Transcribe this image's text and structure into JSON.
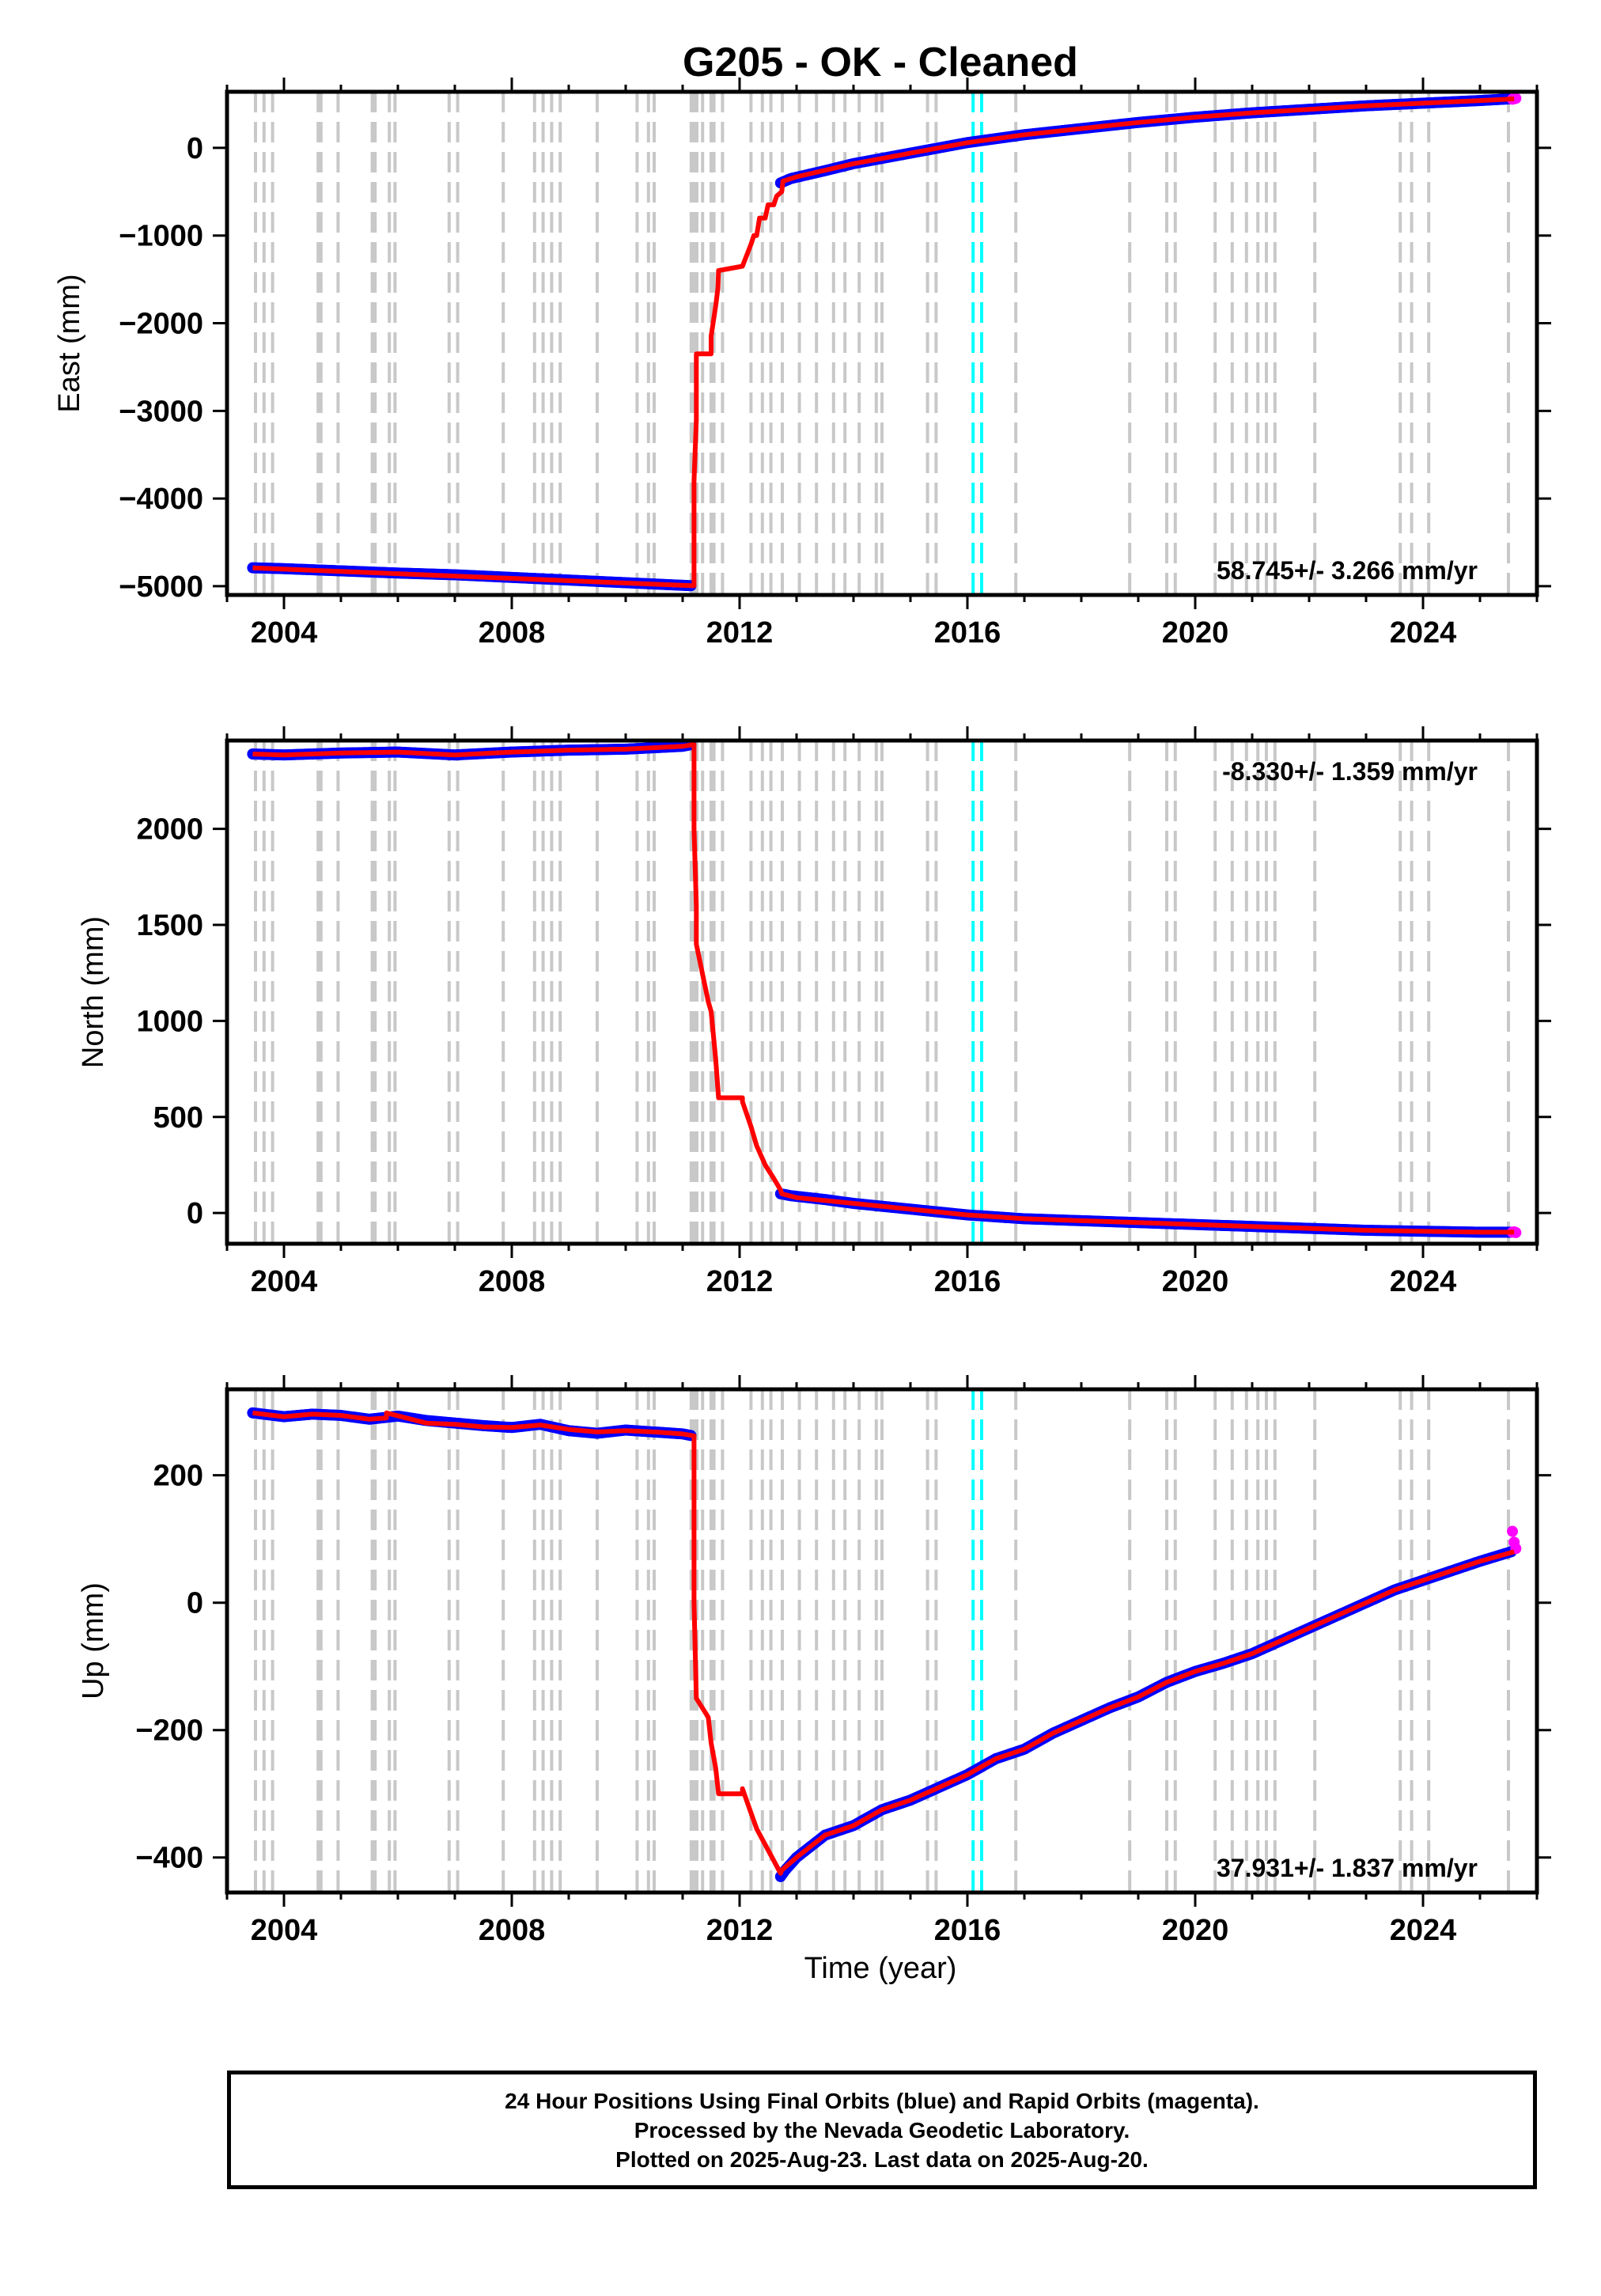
{
  "title": "G205  - OK - Cleaned",
  "xlabel": "Time (year)",
  "colors": {
    "final_orbits": "#0000ff",
    "rapid_orbits": "#ff00ff",
    "model": "#ff0000",
    "offset_lines": "#c8c8c8",
    "offset_lines_highlight": "#00ffff"
  },
  "footer": {
    "line1": "24 Hour Positions Using Final Orbits (blue) and Rapid Orbits (magenta).",
    "line2": "Processed by the Nevada Geodetic Laboratory.",
    "line3": "Plotted on 2025-Aug-23. Last data on 2025-Aug-20."
  },
  "chart_data": [
    {
      "type": "scatter",
      "panel": "east",
      "ylabel": "East (mm)",
      "rate_label": "58.745+/- 3.266 mm/yr",
      "rate_position": "bottom-right",
      "xlim": [
        2003.0,
        2026.0
      ],
      "ylim": [
        -5100,
        640
      ],
      "x_ticks": [
        2004,
        2008,
        2012,
        2016,
        2020,
        2024
      ],
      "y_ticks": [
        0,
        -1000,
        -2000,
        -3000,
        -4000,
        -5000
      ],
      "y_tick_labels": [
        "0",
        "−1000",
        "−2000",
        "−3000",
        "−4000",
        "−5000"
      ],
      "grid": false,
      "series": [
        {
          "name": "Final Orbits",
          "color": "blue",
          "style": "points",
          "x": [
            2003.45,
            2004.0,
            2005.0,
            2006.0,
            2007.0,
            2008.0,
            2009.0,
            2010.0,
            2011.0,
            2011.17,
            2012.72,
            2012.9,
            2013.5,
            2014.0,
            2015.0,
            2016.0,
            2017.0,
            2018.0,
            2019.0,
            2020.0,
            2021.0,
            2022.0,
            2023.0,
            2024.0,
            2025.0,
            2025.55
          ],
          "y": [
            -4790,
            -4800,
            -4825,
            -4850,
            -4870,
            -4900,
            -4930,
            -4960,
            -4990,
            -4995,
            -400,
            -350,
            -260,
            -180,
            -60,
            60,
            150,
            220,
            290,
            350,
            400,
            440,
            480,
            510,
            540,
            560
          ]
        },
        {
          "name": "Rapid Orbits",
          "color": "magenta",
          "style": "points",
          "x": [
            2025.57,
            2025.6,
            2025.63
          ],
          "y": [
            555,
            560,
            565
          ]
        },
        {
          "name": "Model",
          "color": "red",
          "style": "line",
          "x": [
            2003.45,
            2011.2,
            2011.2,
            2011.24,
            2011.24,
            2011.5,
            2011.5,
            2011.58,
            2011.62,
            2011.63,
            2012.05,
            2012.05,
            2012.2,
            2012.25,
            2012.3,
            2012.35,
            2012.45,
            2012.5,
            2012.6,
            2012.65,
            2012.74,
            2012.76,
            2013.0,
            2014.0,
            2015.0,
            2016.0,
            2017.0,
            2018.0,
            2019.0,
            2020.0,
            2021.0,
            2022.0,
            2023.0,
            2024.0,
            2025.0,
            2025.6
          ],
          "y": [
            -4790,
            -4995,
            -3800,
            -3100,
            -2350,
            -2350,
            -2150,
            -1800,
            -1600,
            -1400,
            -1350,
            -1350,
            -1100,
            -1000,
            -1000,
            -800,
            -800,
            -650,
            -650,
            -550,
            -500,
            -380,
            -330,
            -180,
            -60,
            60,
            150,
            220,
            290,
            350,
            400,
            440,
            480,
            510,
            540,
            560
          ]
        }
      ],
      "offset_lines_x": [
        2003.5,
        2003.65,
        2003.8,
        2004.6,
        2004.65,
        2004.95,
        2005.55,
        2005.6,
        2005.85,
        2005.95,
        2006.9,
        2007.05,
        2007.85,
        2008.4,
        2008.55,
        2008.7,
        2008.85,
        2009.5,
        2010.2,
        2010.4,
        2010.5,
        2011.15,
        2011.2,
        2011.25,
        2011.35,
        2011.5,
        2011.55,
        2011.7,
        2012.2,
        2012.4,
        2012.55,
        2012.75,
        2013.05,
        2013.35,
        2013.65,
        2013.85,
        2014.1,
        2014.4,
        2014.5,
        2015.3,
        2015.45,
        2016.85,
        2018.85,
        2019.5,
        2019.65,
        2020.35,
        2020.65,
        2020.9,
        2021.1,
        2021.25,
        2021.4,
        2022.1,
        2023.6,
        2023.8,
        2024.1,
        2025.5
      ],
      "highlight_lines_x": [
        2016.1,
        2016.25
      ]
    },
    {
      "type": "scatter",
      "panel": "north",
      "ylabel": "North (mm)",
      "rate_label": "-8.330+/- 1.359 mm/yr",
      "rate_position": "top-right",
      "xlim": [
        2003.0,
        2026.0
      ],
      "ylim": [
        -160,
        2460
      ],
      "x_ticks": [
        2004,
        2008,
        2012,
        2016,
        2020,
        2024
      ],
      "y_ticks": [
        2000,
        1500,
        1000,
        500,
        0
      ],
      "y_tick_labels": [
        "2000",
        "1500",
        "1000",
        "500",
        "0"
      ],
      "grid": false,
      "series": [
        {
          "name": "Final Orbits",
          "color": "blue",
          "style": "points",
          "x": [
            2003.45,
            2004.0,
            2005.0,
            2006.0,
            2007.0,
            2008.0,
            2009.0,
            2010.0,
            2011.0,
            2011.17,
            2012.72,
            2012.9,
            2013.5,
            2014.0,
            2015.0,
            2016.0,
            2017.0,
            2018.0,
            2019.0,
            2020.0,
            2021.0,
            2022.0,
            2023.0,
            2024.0,
            2025.0,
            2025.55
          ],
          "y": [
            2390,
            2385,
            2395,
            2400,
            2385,
            2400,
            2410,
            2415,
            2430,
            2440,
            100,
            90,
            70,
            50,
            20,
            -10,
            -30,
            -40,
            -50,
            -60,
            -70,
            -80,
            -90,
            -95,
            -100,
            -100
          ]
        },
        {
          "name": "Rapid Orbits",
          "color": "magenta",
          "style": "points",
          "x": [
            2025.57,
            2025.6,
            2025.63
          ],
          "y": [
            -100,
            -98,
            -102
          ]
        },
        {
          "name": "Model",
          "color": "red",
          "style": "line",
          "x": [
            2003.45,
            2004.0,
            2005.0,
            2006.0,
            2007.0,
            2008.0,
            2009.0,
            2010.0,
            2011.0,
            2011.2,
            2011.2,
            2011.24,
            2011.24,
            2011.45,
            2011.5,
            2011.58,
            2011.63,
            2012.05,
            2012.05,
            2012.2,
            2012.3,
            2012.45,
            2012.6,
            2012.72,
            2012.74,
            2013.0,
            2014.0,
            2015.0,
            2016.0,
            2017.0,
            2018.0,
            2019.0,
            2020.0,
            2021.0,
            2022.0,
            2023.0,
            2024.0,
            2025.0,
            2025.6
          ],
          "y": [
            2390,
            2385,
            2395,
            2400,
            2385,
            2400,
            2410,
            2415,
            2430,
            2440,
            2000,
            1600,
            1400,
            1100,
            1050,
            800,
            600,
            600,
            580,
            450,
            350,
            250,
            180,
            120,
            100,
            80,
            50,
            20,
            -10,
            -30,
            -40,
            -50,
            -60,
            -70,
            -80,
            -90,
            -95,
            -100,
            -100
          ]
        }
      ],
      "offset_lines_x": [
        2003.5,
        2003.65,
        2003.8,
        2004.6,
        2004.65,
        2004.95,
        2005.55,
        2005.6,
        2005.85,
        2005.95,
        2006.9,
        2007.05,
        2007.85,
        2008.4,
        2008.55,
        2008.7,
        2008.85,
        2009.5,
        2010.2,
        2010.4,
        2010.5,
        2011.15,
        2011.2,
        2011.25,
        2011.35,
        2011.5,
        2011.55,
        2011.7,
        2012.2,
        2012.4,
        2012.55,
        2012.75,
        2013.05,
        2013.35,
        2013.65,
        2013.85,
        2014.1,
        2014.4,
        2014.5,
        2015.3,
        2015.45,
        2016.85,
        2018.85,
        2019.5,
        2019.65,
        2020.35,
        2020.65,
        2020.9,
        2021.1,
        2021.25,
        2021.4,
        2022.1,
        2023.6,
        2023.8,
        2024.1,
        2025.5
      ],
      "highlight_lines_x": [
        2016.1,
        2016.25
      ]
    },
    {
      "type": "scatter",
      "panel": "up",
      "ylabel": "Up (mm)",
      "rate_label": "37.931+/- 1.837 mm/yr",
      "rate_position": "bottom-right",
      "xlim": [
        2003.0,
        2026.0
      ],
      "ylim": [
        -455,
        335
      ],
      "x_ticks": [
        2004,
        2008,
        2012,
        2016,
        2020,
        2024
      ],
      "y_ticks": [
        200,
        0,
        -200,
        -400
      ],
      "y_tick_labels": [
        "200",
        "0",
        "−200",
        "−400"
      ],
      "grid": false,
      "series": [
        {
          "name": "Final Orbits",
          "color": "blue",
          "style": "points",
          "x": [
            2003.45,
            2004.0,
            2004.5,
            2005.0,
            2005.5,
            2006.0,
            2006.5,
            2007.0,
            2007.5,
            2008.0,
            2008.5,
            2009.0,
            2009.5,
            2010.0,
            2010.5,
            2011.0,
            2011.17,
            2012.72,
            2012.8,
            2013.0,
            2013.5,
            2014.0,
            2014.5,
            2015.0,
            2015.5,
            2016.0,
            2016.5,
            2017.0,
            2017.5,
            2018.0,
            2018.5,
            2019.0,
            2019.5,
            2020.0,
            2020.5,
            2021.0,
            2021.5,
            2022.0,
            2022.5,
            2023.0,
            2023.5,
            2024.0,
            2024.5,
            2025.0,
            2025.55
          ],
          "y": [
            298,
            292,
            296,
            294,
            288,
            293,
            286,
            282,
            278,
            275,
            280,
            270,
            266,
            271,
            268,
            265,
            262,
            -430,
            -420,
            -400,
            -365,
            -350,
            -325,
            -310,
            -290,
            -270,
            -245,
            -230,
            -205,
            -185,
            -165,
            -148,
            -125,
            -108,
            -95,
            -80,
            -60,
            -40,
            -20,
            0,
            20,
            35,
            50,
            65,
            80
          ]
        },
        {
          "name": "Rapid Orbits",
          "color": "magenta",
          "style": "points",
          "x": [
            2025.57,
            2025.6,
            2025.63
          ],
          "y": [
            112,
            95,
            85
          ]
        },
        {
          "name": "Model",
          "color": "red",
          "style": "line",
          "x": [
            2003.45,
            2004.0,
            2004.5,
            2005.0,
            2005.5,
            2005.8,
            2005.8,
            2006.5,
            2007.0,
            2007.5,
            2008.0,
            2008.5,
            2009.0,
            2009.5,
            2010.0,
            2010.5,
            2011.0,
            2011.2,
            2011.2,
            2011.24,
            2011.24,
            2011.45,
            2011.5,
            2011.58,
            2011.63,
            2012.05,
            2012.05,
            2012.2,
            2012.3,
            2012.45,
            2012.6,
            2012.72,
            2012.74,
            2013.0,
            2013.5,
            2014.0,
            2014.5,
            2015.0,
            2015.5,
            2016.0,
            2016.5,
            2017.0,
            2017.5,
            2018.0,
            2018.5,
            2019.0,
            2019.5,
            2020.0,
            2020.5,
            2021.0,
            2021.5,
            2022.0,
            2022.5,
            2023.0,
            2023.5,
            2024.0,
            2024.5,
            2025.0,
            2025.6
          ],
          "y": [
            298,
            292,
            296,
            294,
            288,
            290,
            298,
            282,
            280,
            276,
            275,
            279,
            272,
            268,
            270,
            268,
            265,
            262,
            0,
            -150,
            -150,
            -180,
            -220,
            -260,
            -300,
            -300,
            -292,
            -330,
            -355,
            -380,
            -405,
            -425,
            -420,
            -400,
            -365,
            -350,
            -325,
            -310,
            -290,
            -270,
            -245,
            -230,
            -205,
            -185,
            -165,
            -148,
            -125,
            -108,
            -95,
            -80,
            -60,
            -40,
            -20,
            0,
            20,
            35,
            50,
            65,
            80
          ]
        }
      ],
      "offset_lines_x": [
        2003.5,
        2003.65,
        2003.8,
        2004.6,
        2004.65,
        2004.95,
        2005.55,
        2005.6,
        2005.85,
        2005.95,
        2006.9,
        2007.05,
        2007.85,
        2008.4,
        2008.55,
        2008.7,
        2008.85,
        2009.5,
        2010.2,
        2010.4,
        2010.5,
        2011.15,
        2011.2,
        2011.25,
        2011.35,
        2011.5,
        2011.55,
        2011.7,
        2012.2,
        2012.4,
        2012.55,
        2012.75,
        2013.05,
        2013.35,
        2013.65,
        2013.85,
        2014.1,
        2014.4,
        2014.5,
        2015.3,
        2015.45,
        2016.85,
        2018.85,
        2019.5,
        2019.65,
        2020.35,
        2020.65,
        2020.9,
        2021.1,
        2021.25,
        2021.4,
        2022.1,
        2023.6,
        2023.8,
        2024.1,
        2025.5
      ],
      "highlight_lines_x": [
        2016.1,
        2016.25
      ]
    }
  ]
}
